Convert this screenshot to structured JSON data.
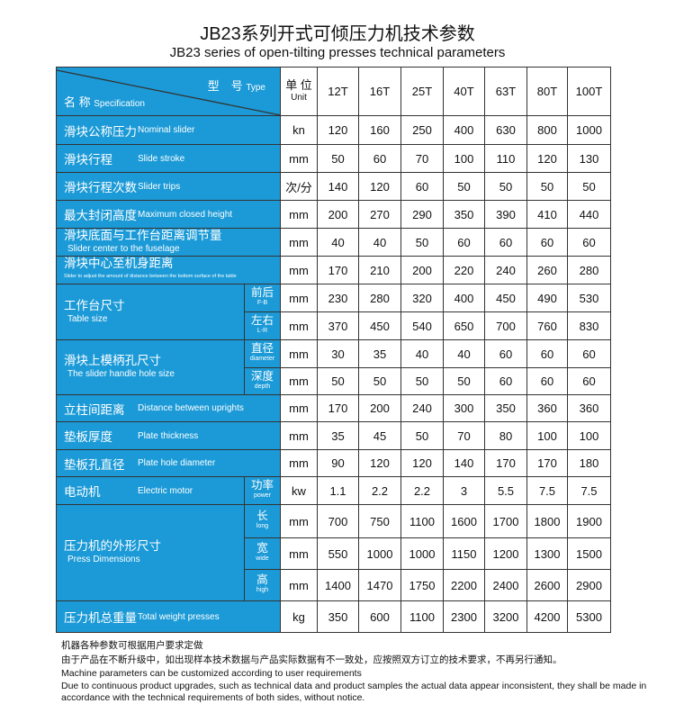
{
  "title": "JB23系列开式可倾压力机技术参数",
  "subtitle": "JB23 series of open-tilting presses technical parameters",
  "colors": {
    "header_blue": "#1b9ad7",
    "border": "#333333"
  },
  "header": {
    "type_zh": "型　号",
    "type_en": "Type",
    "spec_zh": "名 称",
    "spec_en": "Specification",
    "unit_zh": "单 位",
    "unit_en": "Unit",
    "models": [
      "12T",
      "16T",
      "25T",
      "40T",
      "63T",
      "80T",
      "100T"
    ]
  },
  "rows": [
    {
      "zh": "滑块公称压力",
      "en": "Nominal slider",
      "unit": "kn",
      "values": [
        "120",
        "160",
        "250",
        "400",
        "630",
        "800",
        "1000"
      ],
      "h": 32
    },
    {
      "zh": "滑块行程",
      "en": "Slide stroke",
      "unit": "mm",
      "values": [
        "50",
        "60",
        "70",
        "100",
        "110",
        "120",
        "130"
      ],
      "h": 31
    },
    {
      "zh": "滑块行程次数",
      "en": "Slider trips",
      "unit": "次/分",
      "values": [
        "140",
        "120",
        "60",
        "50",
        "50",
        "50",
        "50"
      ],
      "h": 31
    },
    {
      "zh": "最大封闭高度",
      "en": "Maximum closed height",
      "unit": "mm",
      "values": [
        "200",
        "270",
        "290",
        "350",
        "390",
        "410",
        "440"
      ],
      "h": 31
    },
    {
      "zh": "滑块底面与工作台距离调节量",
      "en": "Slider center to the fuselage",
      "unit": "mm",
      "values": [
        "40",
        "40",
        "50",
        "60",
        "60",
        "60",
        "60"
      ],
      "h": 31,
      "stack": true
    },
    {
      "zh": "滑块中心至机身距离",
      "en": "Slider to adjust the amount of distance between the bottom surface of the table",
      "unit": "mm",
      "values": [
        "170",
        "210",
        "200",
        "220",
        "240",
        "260",
        "280"
      ],
      "h": 31,
      "stack": true,
      "tiny": true
    },
    {
      "zh": "工作台尺寸",
      "en": "Table size",
      "subs": [
        {
          "zh": "前后",
          "en": "F-B",
          "unit": "mm",
          "values": [
            "230",
            "280",
            "320",
            "400",
            "450",
            "490",
            "530"
          ],
          "h": 31
        },
        {
          "zh": "左右",
          "en": "L-R",
          "unit": "mm",
          "values": [
            "370",
            "450",
            "540",
            "650",
            "700",
            "760",
            "830"
          ],
          "h": 31
        }
      ]
    },
    {
      "zh": "滑块上模柄孔尺寸",
      "en": "The slider handle hole size",
      "subs": [
        {
          "zh": "直径",
          "en": "diameter",
          "unit": "mm",
          "values": [
            "30",
            "35",
            "40",
            "40",
            "60",
            "60",
            "60"
          ],
          "h": 31
        },
        {
          "zh": "深度",
          "en": "depth",
          "unit": "mm",
          "values": [
            "50",
            "50",
            "50",
            "50",
            "60",
            "60",
            "60"
          ],
          "h": 30
        }
      ]
    },
    {
      "zh": "立柱间距离",
      "en": "Distance between uprights",
      "unit": "mm",
      "values": [
        "170",
        "200",
        "240",
        "300",
        "350",
        "360",
        "360"
      ],
      "h": 30
    },
    {
      "zh": "垫板厚度",
      "en": "Plate thickness",
      "unit": "mm",
      "values": [
        "35",
        "45",
        "50",
        "70",
        "80",
        "100",
        "100"
      ],
      "h": 31
    },
    {
      "zh": "垫板孔直径",
      "en": "Plate hole diameter",
      "unit": "mm",
      "values": [
        "90",
        "120",
        "120",
        "140",
        "170",
        "170",
        "180"
      ],
      "h": 30
    },
    {
      "zh": "电动机",
      "en": "Electric motor",
      "subs": [
        {
          "zh": "功率",
          "en": "power",
          "unit": "kw",
          "values": [
            "1.1",
            "2.2",
            "2.2",
            "3",
            "5.5",
            "7.5",
            "7.5"
          ],
          "h": 31
        }
      ]
    },
    {
      "zh": "压力机的外形尺寸",
      "en": "Press Dimensions",
      "subs": [
        {
          "zh": "长",
          "en": "long",
          "unit": "mm",
          "values": [
            "700",
            "750",
            "1100",
            "1600",
            "1700",
            "1800",
            "1900"
          ],
          "h": 37
        },
        {
          "zh": "宽",
          "en": "wide",
          "unit": "mm",
          "values": [
            "550",
            "1000",
            "1000",
            "1150",
            "1200",
            "1300",
            "1500"
          ],
          "h": 35
        },
        {
          "zh": "高",
          "en": "high",
          "unit": "mm",
          "values": [
            "1400",
            "1470",
            "1750",
            "2200",
            "2400",
            "2600",
            "2900"
          ],
          "h": 35
        }
      ]
    },
    {
      "zh": "压力机总重量",
      "en": "Total weight presses",
      "unit": "kg",
      "values": [
        "350",
        "600",
        "1100",
        "2300",
        "3200",
        "4200",
        "5300"
      ],
      "h": 35
    }
  ],
  "notes": {
    "cn": [
      "机器各种参数可根据用户要求定做",
      "由于产品在不断升级中，如出现样本技术数据与产品实际数据有不一致处，应按照双方订立的技术要求，不再另行通知。"
    ],
    "en": [
      "Machine parameters can be customized according to user requirements",
      "Due to continuous product upgrades, such as technical data and product samples the actual data appear inconsistent, they shall be made in accordance with the technical requirements of both sides, without notice."
    ]
  }
}
